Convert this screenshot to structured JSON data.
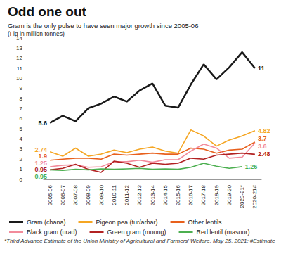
{
  "chart_data": {
    "type": "line",
    "title": "Odd one out",
    "subtitle": "Gram is the only pulse to have seen major growth since 2005-06",
    "ylabel": "(Fig in million tonnes)",
    "footnote": "*Third Advance Estimate of the Union Ministry of Agricultural and Farmers' Welfare, May 25, 2021; #Estimate",
    "categories": [
      "2005-06",
      "2006-07",
      "2007-08",
      "2008-09",
      "2009-10",
      "2010-11",
      "2011-12",
      "2012-13",
      "2013-14",
      "2014-15",
      "2015-16",
      "2016-17",
      "2017-18",
      "2018-19",
      "2019-20",
      "2020-21*",
      "2020-21#"
    ],
    "series": [
      {
        "name": "Gram (chana)",
        "color": "#1a1a1a",
        "values": [
          5.6,
          6.3,
          5.75,
          7.05,
          7.5,
          8.2,
          7.7,
          8.8,
          9.5,
          7.3,
          7.1,
          9.4,
          11.4,
          9.9,
          11.1,
          12.6,
          11
        ],
        "value_labels": [
          "5.6",
          null,
          null,
          null,
          null,
          null,
          null,
          null,
          null,
          null,
          null,
          null,
          null,
          null,
          null,
          null,
          "11"
        ]
      },
      {
        "name": "Pigeon pea (tur/arhar)",
        "color": "#f5a623",
        "values": [
          2.74,
          2.3,
          3.1,
          2.3,
          2.5,
          2.9,
          2.65,
          3.0,
          3.2,
          2.8,
          2.6,
          4.9,
          4.3,
          3.3,
          3.9,
          4.3,
          4.82
        ],
        "value_labels": [
          "2.74",
          null,
          null,
          null,
          null,
          null,
          null,
          null,
          null,
          null,
          null,
          null,
          null,
          null,
          null,
          null,
          "4.82"
        ]
      },
      {
        "name": "Other lentils",
        "color": "#e8601c",
        "values": [
          1.9,
          2.0,
          2.1,
          2.1,
          2.0,
          2.5,
          2.4,
          2.5,
          2.6,
          2.5,
          2.5,
          3.1,
          3.0,
          2.6,
          2.9,
          3.0,
          3.7
        ],
        "value_labels": [
          "1.9",
          null,
          null,
          null,
          null,
          null,
          null,
          null,
          null,
          null,
          null,
          null,
          null,
          null,
          null,
          null,
          "3.7"
        ]
      },
      {
        "name": "Black gram (urad)",
        "color": "#f28b9b",
        "values": [
          1.25,
          1.4,
          1.45,
          1.2,
          1.25,
          1.75,
          1.75,
          1.9,
          1.7,
          1.95,
          1.95,
          2.8,
          3.5,
          3.1,
          2.1,
          2.2,
          3.6
        ],
        "value_labels": [
          "1.25",
          null,
          null,
          null,
          null,
          null,
          null,
          null,
          null,
          null,
          null,
          null,
          null,
          null,
          null,
          null,
          "3.6"
        ]
      },
      {
        "name": "Green gram (moong)",
        "color": "#b22222",
        "values": [
          0.95,
          1.1,
          1.5,
          1.0,
          0.7,
          1.8,
          1.6,
          1.2,
          1.6,
          1.5,
          1.6,
          2.1,
          2.0,
          2.4,
          2.5,
          2.6,
          2.48
        ],
        "value_labels": [
          "0.95",
          null,
          null,
          null,
          null,
          null,
          null,
          null,
          null,
          null,
          null,
          null,
          null,
          null,
          null,
          null,
          "2.48"
        ]
      },
      {
        "name": "Red lentil (masoor)",
        "color": "#4caf50",
        "values": [
          0.95,
          0.9,
          1.0,
          0.95,
          1.05,
          1.0,
          1.05,
          1.1,
          1.0,
          1.05,
          1.0,
          1.2,
          1.6,
          1.3,
          1.1,
          1.26,
          null
        ],
        "value_labels": [
          "0.95",
          null,
          null,
          null,
          null,
          null,
          null,
          null,
          null,
          null,
          null,
          null,
          null,
          null,
          null,
          "1.26",
          null
        ]
      }
    ],
    "ylim": [
      0,
      14
    ],
    "yticks": [
      0,
      1,
      2,
      3,
      4,
      5,
      6,
      7,
      8,
      9,
      10,
      11,
      12,
      13,
      14
    ],
    "grid": false,
    "legend": "bottom",
    "data_labels": true
  }
}
